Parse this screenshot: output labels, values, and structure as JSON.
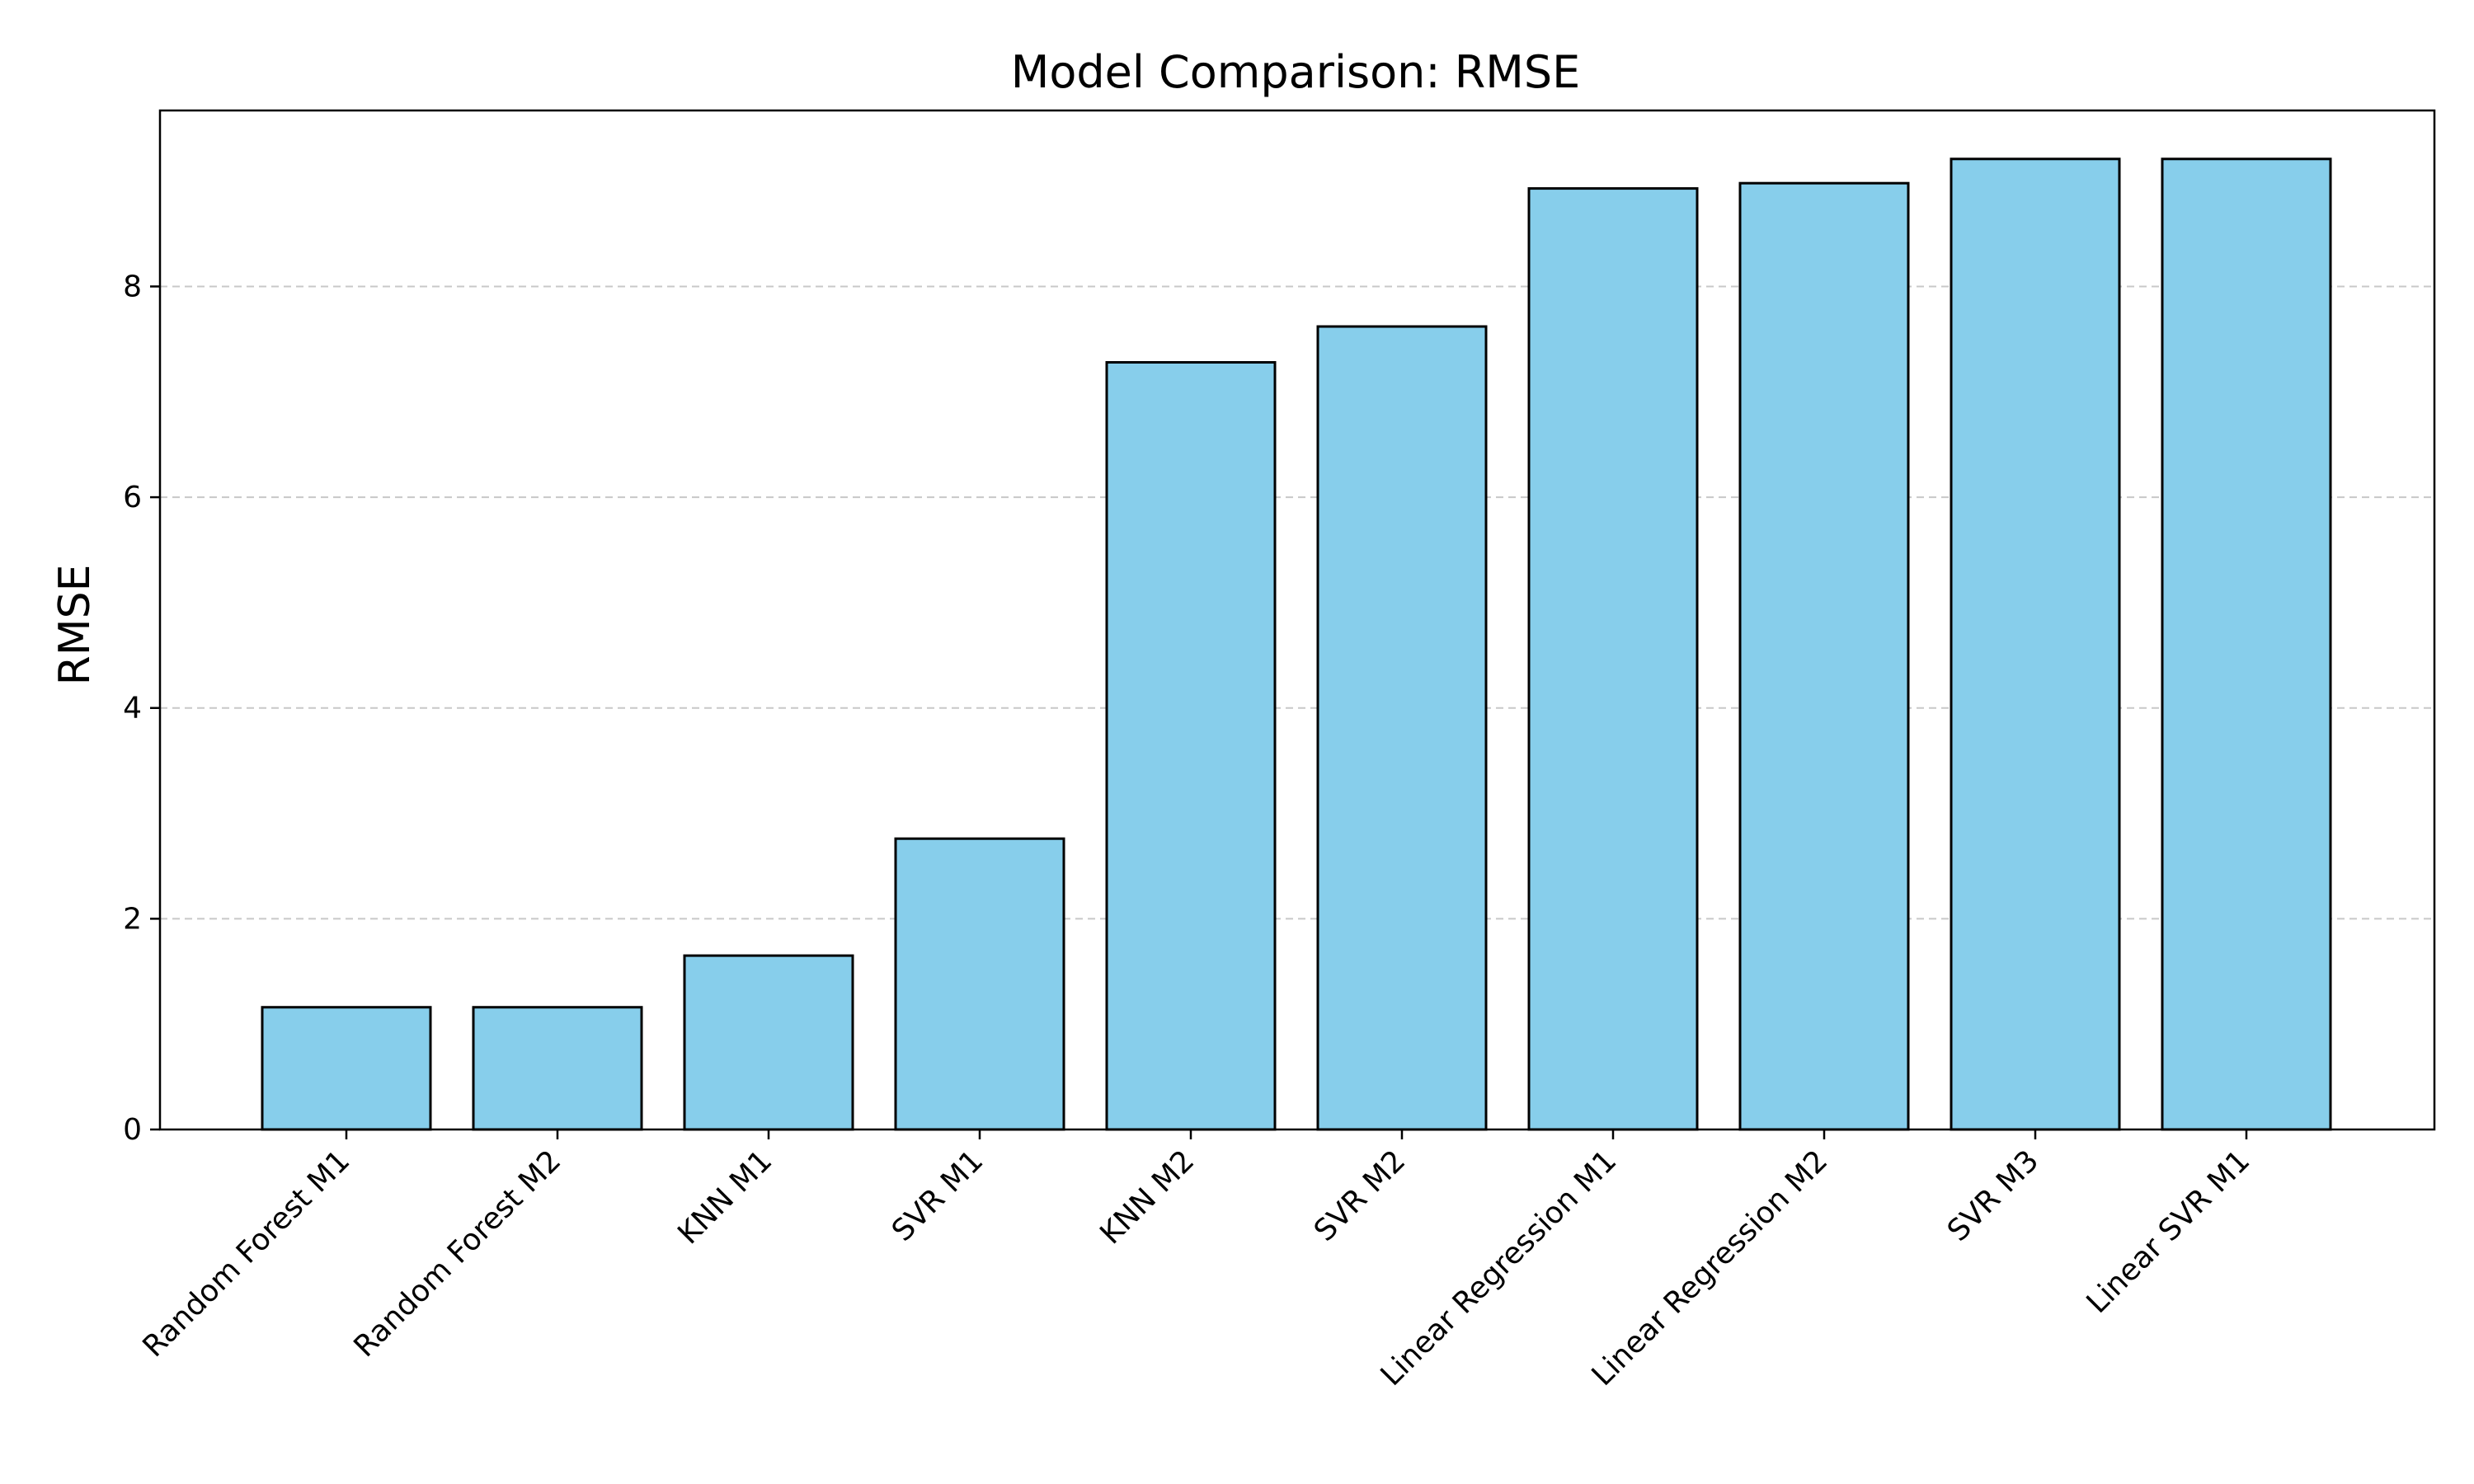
{
  "chart_data": {
    "type": "bar",
    "title": "Model Comparison: RMSE",
    "xlabel": "",
    "ylabel": "RMSE",
    "categories": [
      "Random Forest M1",
      "Random Forest M2",
      "KNN M1",
      "SVR M1",
      "KNN M2",
      "SVR M2",
      "Linear Regression M1",
      "Linear Regression M2",
      "SVR M3",
      "Linear SVR M1"
    ],
    "values": [
      1.16,
      1.16,
      1.65,
      2.76,
      7.28,
      7.62,
      8.93,
      8.98,
      9.21,
      9.21
    ],
    "ylim": [
      0,
      9.67
    ],
    "yticks": [
      0,
      2,
      4,
      6,
      8
    ],
    "grid": "y-dashed",
    "legend": "none",
    "colors": {
      "bar_fill": "#87CEEB",
      "bar_edge": "#000000",
      "grid": "#c8c8c8",
      "axis": "#000000"
    }
  }
}
